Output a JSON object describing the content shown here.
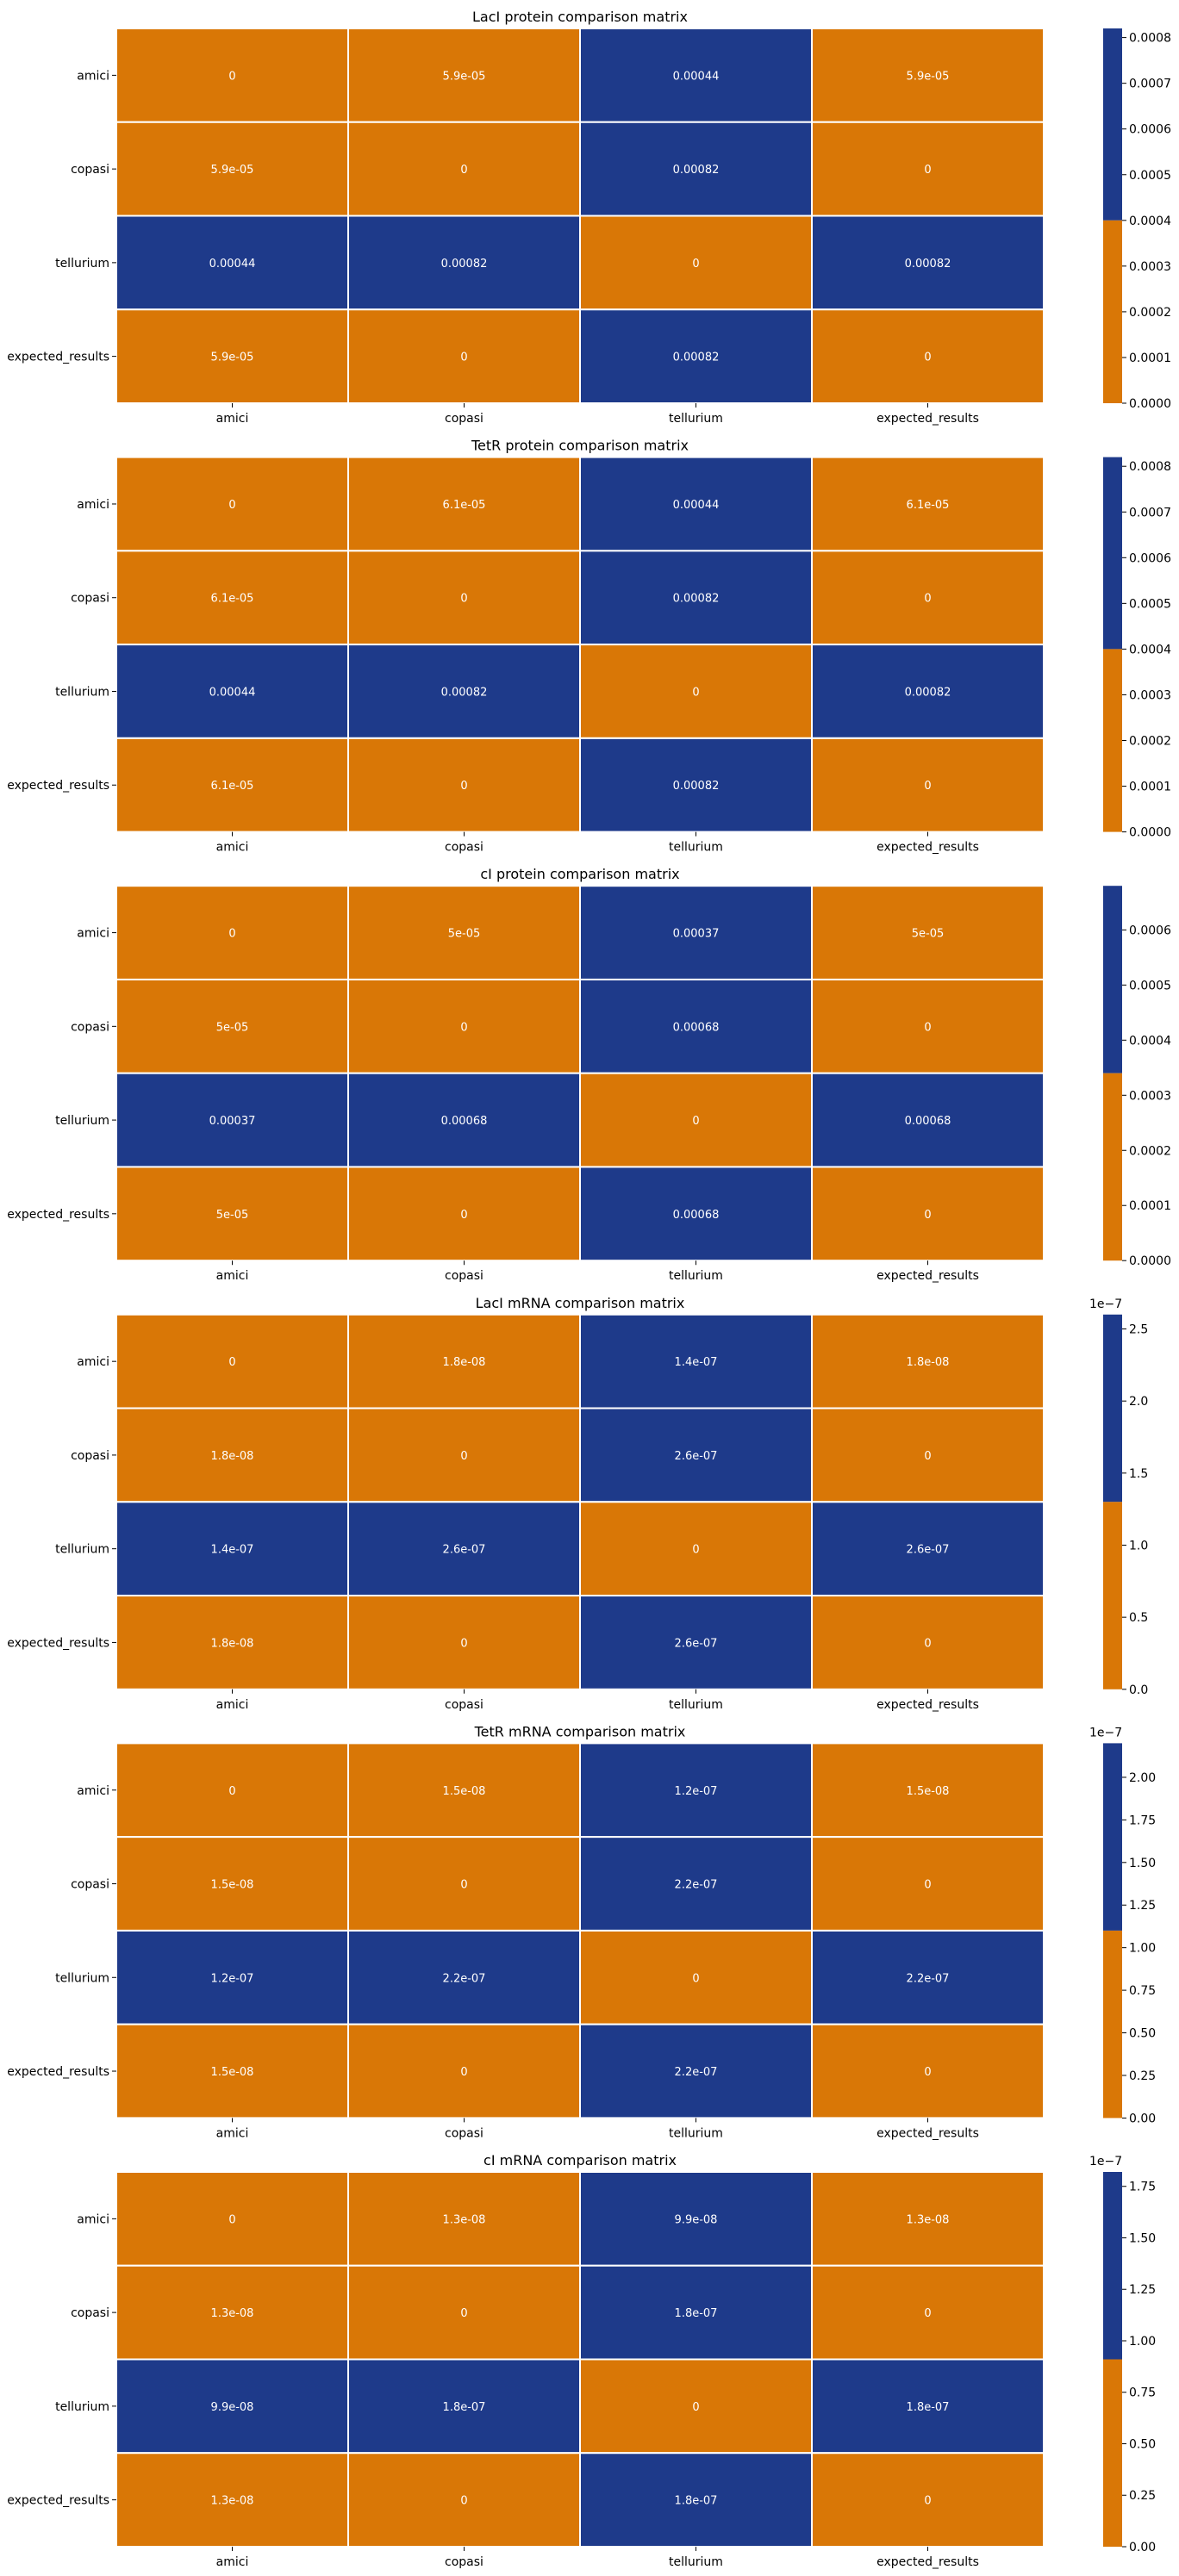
{
  "colors": {
    "low": "#D97706",
    "high": "#1E3A8A",
    "cell_text": "#ffffff",
    "cell_border": "#ffffff",
    "axis_text": "#000000"
  },
  "chart_data": [
    {
      "type": "heatmap",
      "title": "LacI protein comparison matrix",
      "x_labels": [
        "amici",
        "copasi",
        "tellurium",
        "expected_results"
      ],
      "y_labels": [
        "amici",
        "copasi",
        "tellurium",
        "expected_results"
      ],
      "cell_labels": [
        [
          "0",
          "5.9e-05",
          "0.00044",
          "5.9e-05"
        ],
        [
          "5.9e-05",
          "0",
          "0.00082",
          "0"
        ],
        [
          "0.00044",
          "0.00082",
          "0",
          "0.00082"
        ],
        [
          "5.9e-05",
          "0",
          "0.00082",
          "0"
        ]
      ],
      "values": [
        [
          0,
          5.9e-05,
          0.00044,
          5.9e-05
        ],
        [
          5.9e-05,
          0,
          0.00082,
          0
        ],
        [
          0.00044,
          0.00082,
          0,
          0.00082
        ],
        [
          5.9e-05,
          0,
          0.00082,
          0
        ]
      ],
      "colorbar": {
        "range": [
          0,
          0.00082
        ],
        "threshold": 0.0004,
        "ticks": [
          "0.0000",
          "0.0001",
          "0.0002",
          "0.0003",
          "0.0004",
          "0.0005",
          "0.0006",
          "0.0007",
          "0.0008"
        ],
        "tick_values": [
          0,
          0.0001,
          0.0002,
          0.0003,
          0.0004,
          0.0005,
          0.0006,
          0.0007,
          0.0008
        ],
        "offset_text": ""
      }
    },
    {
      "type": "heatmap",
      "title": "TetR protein comparison matrix",
      "x_labels": [
        "amici",
        "copasi",
        "tellurium",
        "expected_results"
      ],
      "y_labels": [
        "amici",
        "copasi",
        "tellurium",
        "expected_results"
      ],
      "cell_labels": [
        [
          "0",
          "6.1e-05",
          "0.00044",
          "6.1e-05"
        ],
        [
          "6.1e-05",
          "0",
          "0.00082",
          "0"
        ],
        [
          "0.00044",
          "0.00082",
          "0",
          "0.00082"
        ],
        [
          "6.1e-05",
          "0",
          "0.00082",
          "0"
        ]
      ],
      "values": [
        [
          0,
          6.1e-05,
          0.00044,
          6.1e-05
        ],
        [
          6.1e-05,
          0,
          0.00082,
          0
        ],
        [
          0.00044,
          0.00082,
          0,
          0.00082
        ],
        [
          6.1e-05,
          0,
          0.00082,
          0
        ]
      ],
      "colorbar": {
        "range": [
          0,
          0.00082
        ],
        "threshold": 0.0004,
        "ticks": [
          "0.0000",
          "0.0001",
          "0.0002",
          "0.0003",
          "0.0004",
          "0.0005",
          "0.0006",
          "0.0007",
          "0.0008"
        ],
        "tick_values": [
          0,
          0.0001,
          0.0002,
          0.0003,
          0.0004,
          0.0005,
          0.0006,
          0.0007,
          0.0008
        ],
        "offset_text": ""
      }
    },
    {
      "type": "heatmap",
      "title": "cI protein comparison matrix",
      "x_labels": [
        "amici",
        "copasi",
        "tellurium",
        "expected_results"
      ],
      "y_labels": [
        "amici",
        "copasi",
        "tellurium",
        "expected_results"
      ],
      "cell_labels": [
        [
          "0",
          "5e-05",
          "0.00037",
          "5e-05"
        ],
        [
          "5e-05",
          "0",
          "0.00068",
          "0"
        ],
        [
          "0.00037",
          "0.00068",
          "0",
          "0.00068"
        ],
        [
          "5e-05",
          "0",
          "0.00068",
          "0"
        ]
      ],
      "values": [
        [
          0,
          5e-05,
          0.00037,
          5e-05
        ],
        [
          5e-05,
          0,
          0.00068,
          0
        ],
        [
          0.00037,
          0.00068,
          0,
          0.00068
        ],
        [
          5e-05,
          0,
          0.00068,
          0
        ]
      ],
      "colorbar": {
        "range": [
          0,
          0.00068
        ],
        "threshold": 0.00034,
        "ticks": [
          "0.0000",
          "0.0001",
          "0.0002",
          "0.0003",
          "0.0004",
          "0.0005",
          "0.0006"
        ],
        "tick_values": [
          0,
          0.0001,
          0.0002,
          0.0003,
          0.0004,
          0.0005,
          0.0006
        ],
        "offset_text": ""
      }
    },
    {
      "type": "heatmap",
      "title": "LacI mRNA comparison matrix",
      "x_labels": [
        "amici",
        "copasi",
        "tellurium",
        "expected_results"
      ],
      "y_labels": [
        "amici",
        "copasi",
        "tellurium",
        "expected_results"
      ],
      "cell_labels": [
        [
          "0",
          "1.8e-08",
          "1.4e-07",
          "1.8e-08"
        ],
        [
          "1.8e-08",
          "0",
          "2.6e-07",
          "0"
        ],
        [
          "1.4e-07",
          "2.6e-07",
          "0",
          "2.6e-07"
        ],
        [
          "1.8e-08",
          "0",
          "2.6e-07",
          "0"
        ]
      ],
      "values": [
        [
          0,
          1.8e-08,
          1.4e-07,
          1.8e-08
        ],
        [
          1.8e-08,
          0,
          2.6e-07,
          0
        ],
        [
          1.4e-07,
          2.6e-07,
          0,
          2.6e-07
        ],
        [
          1.8e-08,
          0,
          2.6e-07,
          0
        ]
      ],
      "colorbar": {
        "range": [
          0,
          2.6e-07
        ],
        "threshold": 1.3e-07,
        "ticks": [
          "0.0",
          "0.5",
          "1.0",
          "1.5",
          "2.0",
          "2.5"
        ],
        "tick_values": [
          0,
          5e-08,
          1e-07,
          1.5e-07,
          2e-07,
          2.5e-07
        ],
        "offset_text": "1e−7"
      }
    },
    {
      "type": "heatmap",
      "title": "TetR mRNA comparison matrix",
      "x_labels": [
        "amici",
        "copasi",
        "tellurium",
        "expected_results"
      ],
      "y_labels": [
        "amici",
        "copasi",
        "tellurium",
        "expected_results"
      ],
      "cell_labels": [
        [
          "0",
          "1.5e-08",
          "1.2e-07",
          "1.5e-08"
        ],
        [
          "1.5e-08",
          "0",
          "2.2e-07",
          "0"
        ],
        [
          "1.2e-07",
          "2.2e-07",
          "0",
          "2.2e-07"
        ],
        [
          "1.5e-08",
          "0",
          "2.2e-07",
          "0"
        ]
      ],
      "values": [
        [
          0,
          1.5e-08,
          1.2e-07,
          1.5e-08
        ],
        [
          1.5e-08,
          0,
          2.2e-07,
          0
        ],
        [
          1.2e-07,
          2.2e-07,
          0,
          2.2e-07
        ],
        [
          1.5e-08,
          0,
          2.2e-07,
          0
        ]
      ],
      "colorbar": {
        "range": [
          0,
          2.2e-07
        ],
        "threshold": 1.1e-07,
        "ticks": [
          "0.00",
          "0.25",
          "0.50",
          "0.75",
          "1.00",
          "1.25",
          "1.50",
          "1.75",
          "2.00"
        ],
        "tick_values": [
          0,
          2.5e-08,
          5e-08,
          7.5e-08,
          1e-07,
          1.25e-07,
          1.5e-07,
          1.75e-07,
          2e-07
        ],
        "offset_text": "1e−7"
      }
    },
    {
      "type": "heatmap",
      "title": "cI mRNA comparison matrix",
      "x_labels": [
        "amici",
        "copasi",
        "tellurium",
        "expected_results"
      ],
      "y_labels": [
        "amici",
        "copasi",
        "tellurium",
        "expected_results"
      ],
      "cell_labels": [
        [
          "0",
          "1.3e-08",
          "9.9e-08",
          "1.3e-08"
        ],
        [
          "1.3e-08",
          "0",
          "1.8e-07",
          "0"
        ],
        [
          "9.9e-08",
          "1.8e-07",
          "0",
          "1.8e-07"
        ],
        [
          "1.3e-08",
          "0",
          "1.8e-07",
          "0"
        ]
      ],
      "values": [
        [
          0,
          1.3e-08,
          9.9e-08,
          1.3e-08
        ],
        [
          1.3e-08,
          0,
          1.8e-07,
          0
        ],
        [
          9.9e-08,
          1.8e-07,
          0,
          1.8e-07
        ],
        [
          1.3e-08,
          0,
          1.8e-07,
          0
        ]
      ],
      "colorbar": {
        "range": [
          0,
          1.82e-07
        ],
        "threshold": 9.1e-08,
        "ticks": [
          "0.00",
          "0.25",
          "0.50",
          "0.75",
          "1.00",
          "1.25",
          "1.50",
          "1.75"
        ],
        "tick_values": [
          0,
          2.5e-08,
          5e-08,
          7.5e-08,
          1e-07,
          1.25e-07,
          1.5e-07,
          1.75e-07
        ],
        "offset_text": "1e−7"
      }
    }
  ]
}
